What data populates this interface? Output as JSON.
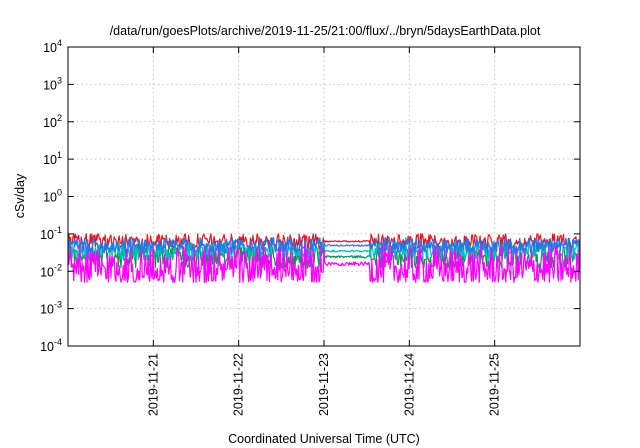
{
  "chart_data": {
    "type": "line",
    "title": "/data/run/goesPlots/archive/2019-11-25/21:00/flux/../bryn/5daysEarthData.plot",
    "xlabel": "Coordinated Universal Time (UTC)",
    "ylabel": "cSv/day",
    "yscale": "log",
    "ylim": [
      0.0001,
      10000
    ],
    "y_ticks": [
      {
        "value": 0.0001,
        "base": "10",
        "exp": "-4"
      },
      {
        "value": 0.001,
        "base": "10",
        "exp": "-3"
      },
      {
        "value": 0.01,
        "base": "10",
        "exp": "-2"
      },
      {
        "value": 0.1,
        "base": "10",
        "exp": "-1"
      },
      {
        "value": 1,
        "base": "10",
        "exp": "0"
      },
      {
        "value": 10,
        "base": "10",
        "exp": "1"
      },
      {
        "value": 100,
        "base": "10",
        "exp": "2"
      },
      {
        "value": 1000,
        "base": "10",
        "exp": "3"
      },
      {
        "value": 10000,
        "base": "10",
        "exp": "4"
      }
    ],
    "xlim": [
      "2019-11-20T00:00",
      "2019-11-26T00:00"
    ],
    "x_ticks": [
      "2019-11-21",
      "2019-11-22",
      "2019-11-23",
      "2019-11-24",
      "2019-11-25"
    ],
    "grid": true,
    "legend": "none",
    "series": [
      {
        "color": "#e8141e",
        "typical_range": [
          0.04,
          0.1
        ]
      },
      {
        "color": "#1a8c5a",
        "typical_range": [
          0.012,
          0.05
        ]
      },
      {
        "color": "#00c0c0",
        "typical_range": [
          0.02,
          0.06
        ]
      },
      {
        "color": "#2277ee",
        "typical_range": [
          0.03,
          0.08
        ]
      },
      {
        "color": "#ff00ff",
        "typical_range": [
          0.005,
          0.05
        ]
      }
    ]
  }
}
